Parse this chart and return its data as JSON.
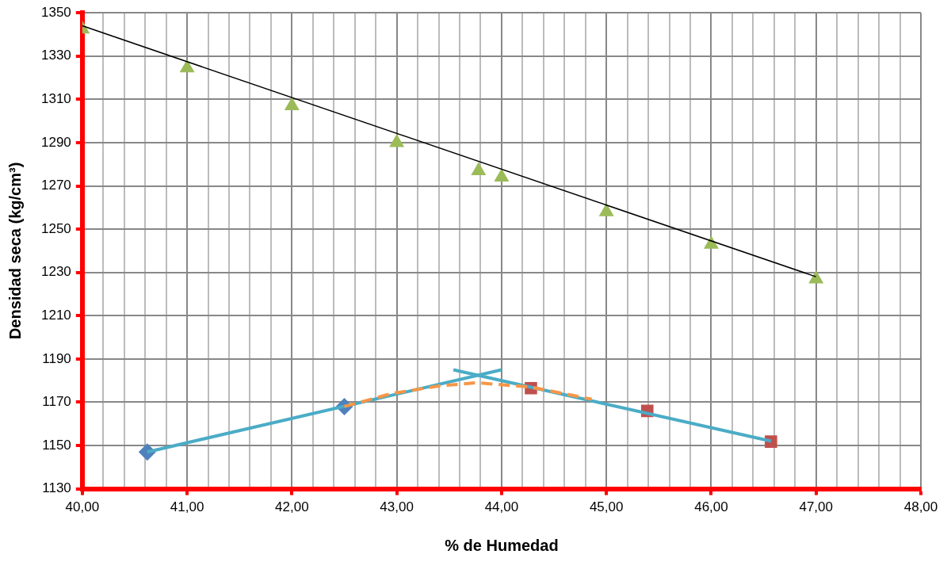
{
  "chart_data": {
    "type": "scatter",
    "xlabel": "% de Humedad",
    "ylabel": "Densidad seca (kg/cm³)",
    "xlim": [
      40,
      48
    ],
    "ylim": [
      1130,
      1350
    ],
    "xticks": [
      {
        "value": 40,
        "label": "40,00"
      },
      {
        "value": 40.2,
        "label": null
      },
      {
        "value": 40.4,
        "label": null
      },
      {
        "value": 40.6,
        "label": null
      },
      {
        "value": 40.8,
        "label": null
      },
      {
        "value": 41,
        "label": "41,00"
      },
      {
        "value": 41.2,
        "label": null
      },
      {
        "value": 41.4,
        "label": null
      },
      {
        "value": 41.6,
        "label": null
      },
      {
        "value": 41.8,
        "label": null
      },
      {
        "value": 42,
        "label": "42,00"
      },
      {
        "value": 42.2,
        "label": null
      },
      {
        "value": 42.4,
        "label": null
      },
      {
        "value": 42.6,
        "label": null
      },
      {
        "value": 42.8,
        "label": null
      },
      {
        "value": 43,
        "label": "43,00"
      },
      {
        "value": 43.2,
        "label": null
      },
      {
        "value": 43.4,
        "label": null
      },
      {
        "value": 43.6,
        "label": null
      },
      {
        "value": 43.8,
        "label": null
      },
      {
        "value": 44,
        "label": "44,00"
      },
      {
        "value": 44.2,
        "label": null
      },
      {
        "value": 44.4,
        "label": null
      },
      {
        "value": 44.6,
        "label": null
      },
      {
        "value": 44.8,
        "label": null
      },
      {
        "value": 45,
        "label": "45,00"
      },
      {
        "value": 45.2,
        "label": null
      },
      {
        "value": 45.4,
        "label": null
      },
      {
        "value": 45.6,
        "label": null
      },
      {
        "value": 45.8,
        "label": null
      },
      {
        "value": 46,
        "label": "46,00"
      },
      {
        "value": 46.2,
        "label": null
      },
      {
        "value": 46.4,
        "label": null
      },
      {
        "value": 46.6,
        "label": null
      },
      {
        "value": 46.8,
        "label": null
      },
      {
        "value": 47,
        "label": "47,00"
      },
      {
        "value": 47.2,
        "label": null
      },
      {
        "value": 47.4,
        "label": null
      },
      {
        "value": 47.6,
        "label": null
      },
      {
        "value": 47.8,
        "label": null
      },
      {
        "value": 48,
        "label": "48,00"
      }
    ],
    "yticks": [
      1130,
      1150,
      1170,
      1190,
      1210,
      1230,
      1250,
      1270,
      1290,
      1310,
      1330,
      1350
    ],
    "grid": true,
    "legend": false,
    "series": [
      {
        "type": "line",
        "color": "#000000",
        "marker": "none",
        "line_style": "solid",
        "x": [
          40,
          47
        ],
        "values": [
          1344,
          1228
        ]
      },
      {
        "type": "scatter",
        "color": "#9bbb59",
        "marker": "triangle",
        "x": [
          40,
          41,
          42,
          43,
          43.78,
          44,
          45,
          46,
          47
        ],
        "values": [
          1342.5,
          1324.5,
          1307,
          1290,
          1277,
          1274,
          1258,
          1243,
          1227
        ]
      },
      {
        "type": "line",
        "color": "#f79646",
        "marker": "none",
        "line_style": "dashed",
        "x": [
          42.5,
          42.95,
          43.4,
          43.76,
          44.28,
          44.86
        ],
        "values": [
          1168,
          1174,
          1177.5,
          1179,
          1177,
          1171.4
        ]
      },
      {
        "type": "line",
        "color": "#4bacc6",
        "marker": "none",
        "line_style": "solid",
        "x": [
          40.62,
          44.0
        ],
        "values": [
          1147,
          1185
        ]
      },
      {
        "type": "line",
        "color": "#4bacc6",
        "marker": "none",
        "line_style": "solid",
        "x": [
          43.54,
          46.57
        ],
        "values": [
          1185,
          1152
        ]
      },
      {
        "type": "scatter",
        "color": "#4f81bd",
        "marker": "diamond",
        "x": [
          40.62,
          42.5
        ],
        "values": [
          1147,
          1168
        ]
      },
      {
        "type": "scatter",
        "color": "#c0504d",
        "marker": "square",
        "x": [
          44.28,
          45.39,
          46.57
        ],
        "values": [
          1176.5,
          1166,
          1151.8
        ]
      }
    ]
  }
}
